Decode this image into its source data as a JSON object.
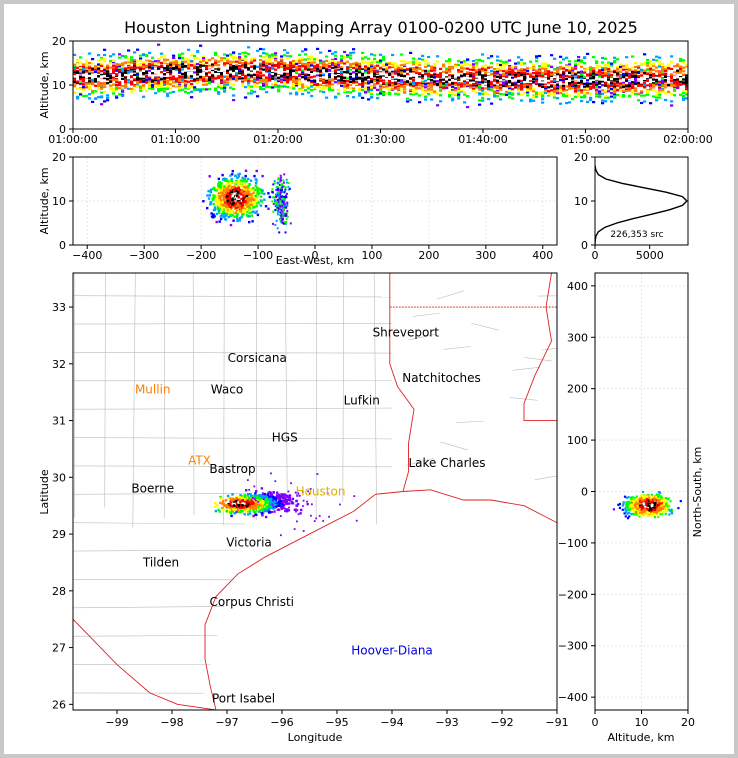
{
  "chart_data": [
    {
      "type": "heatmap",
      "panel": "time-altitude",
      "title": "Houston Lightning Mapping Array 0100-0200 UTC June 10, 2025",
      "ylabel": "Altitude, km",
      "xlabel": "",
      "x_ticks": [
        "01:00:00",
        "01:10:00",
        "01:20:00",
        "01:30:00",
        "01:40:00",
        "01:50:00",
        "02:00:00"
      ],
      "y_ticks": [
        0,
        10,
        20
      ],
      "xlim": [
        "01:00:00",
        "02:00:00"
      ],
      "ylim": [
        0,
        20
      ],
      "core_altitude_km": 12
    },
    {
      "type": "heatmap",
      "panel": "east-west-altitude",
      "xlabel": "East-West, km",
      "ylabel": "Altitude, km",
      "x_ticks": [
        -400,
        -300,
        -200,
        -100,
        0,
        100,
        200,
        300,
        400
      ],
      "y_ticks": [
        0,
        10,
        20
      ],
      "xlim": [
        -425,
        425
      ],
      "ylim": [
        0,
        20
      ],
      "grid": true
    },
    {
      "type": "line",
      "panel": "altitude-histogram",
      "x_ticks": [
        0,
        5000
      ],
      "y_ticks": [
        0,
        10,
        20
      ],
      "xlim": [
        0,
        8500
      ],
      "ylim": [
        0,
        20
      ],
      "annotation": "226,353 src",
      "series": [
        {
          "x": [
            0,
            20,
            80,
            300,
            900,
            2000,
            3500,
            5200,
            6800,
            8000,
            8400,
            8000,
            6500,
            4500,
            2500,
            1000,
            300,
            80,
            10
          ],
          "y": [
            0,
            1,
            2,
            3,
            4,
            5,
            6,
            7,
            8,
            9,
            10,
            11,
            12,
            13,
            14,
            15,
            16,
            17,
            18
          ]
        }
      ]
    },
    {
      "type": "heatmap",
      "panel": "plan-view",
      "xlabel": "Longitude",
      "ylabel": "Latitude",
      "x_ticks": [
        -99,
        -98,
        -97,
        -96,
        -95,
        -94,
        -93,
        -92,
        -91
      ],
      "y_ticks": [
        26,
        27,
        28,
        29,
        30,
        31,
        32,
        33
      ],
      "xlim": [
        -99.8,
        -91
      ],
      "ylim": [
        25.9,
        33.6
      ],
      "storm_center": [
        -96.8,
        29.55
      ],
      "cities": [
        {
          "name": "Shreveport",
          "lon": -93.75,
          "lat": 32.55,
          "color": "#000000"
        },
        {
          "name": "Corsicana",
          "lon": -96.45,
          "lat": 32.1,
          "color": "#000000"
        },
        {
          "name": "Natchitoches",
          "lon": -93.1,
          "lat": 31.75,
          "color": "#000000"
        },
        {
          "name": "Mullin",
          "lon": -98.35,
          "lat": 31.55,
          "color": "#ff8000"
        },
        {
          "name": "Waco",
          "lon": -97.0,
          "lat": 31.55,
          "color": "#000000"
        },
        {
          "name": "Lufkin",
          "lon": -94.55,
          "lat": 31.35,
          "color": "#000000"
        },
        {
          "name": "HGS",
          "lon": -95.95,
          "lat": 30.7,
          "color": "#000000"
        },
        {
          "name": "ATX",
          "lon": -97.5,
          "lat": 30.3,
          "color": "#ff8000"
        },
        {
          "name": "Lake Charles",
          "lon": -93.0,
          "lat": 30.25,
          "color": "#000000"
        },
        {
          "name": "Bastrop",
          "lon": -96.9,
          "lat": 30.15,
          "color": "#000000"
        },
        {
          "name": "Boerne",
          "lon": -98.35,
          "lat": 29.8,
          "color": "#000000"
        },
        {
          "name": "Houston",
          "lon": -95.3,
          "lat": 29.75,
          "color": "#e0b000"
        },
        {
          "name": "Victoria",
          "lon": -96.6,
          "lat": 28.85,
          "color": "#000000"
        },
        {
          "name": "Tilden",
          "lon": -98.2,
          "lat": 28.5,
          "color": "#000000"
        },
        {
          "name": "Corpus Christi",
          "lon": -96.55,
          "lat": 27.8,
          "color": "#000000"
        },
        {
          "name": "Hoover-Diana",
          "lon": -94.0,
          "lat": 26.95,
          "color": "#0000dd"
        },
        {
          "name": "Port Isabel",
          "lon": -96.7,
          "lat": 26.1,
          "color": "#000000"
        }
      ]
    },
    {
      "type": "heatmap",
      "panel": "north-south-altitude",
      "xlabel": "Altitude, km",
      "ylabel": "North-South, km",
      "x_ticks": [
        0,
        10,
        20
      ],
      "y_ticks": [
        -400,
        -300,
        -200,
        -100,
        0,
        100,
        200,
        300,
        400
      ],
      "xlim": [
        0,
        20
      ],
      "ylim": [
        -425,
        425
      ],
      "grid": true
    }
  ],
  "palette": [
    "#8000ff",
    "#0000ff",
    "#00a0ff",
    "#00ff00",
    "#ffff00",
    "#ff8000",
    "#ff0000",
    "#000000",
    "#ffffff"
  ]
}
